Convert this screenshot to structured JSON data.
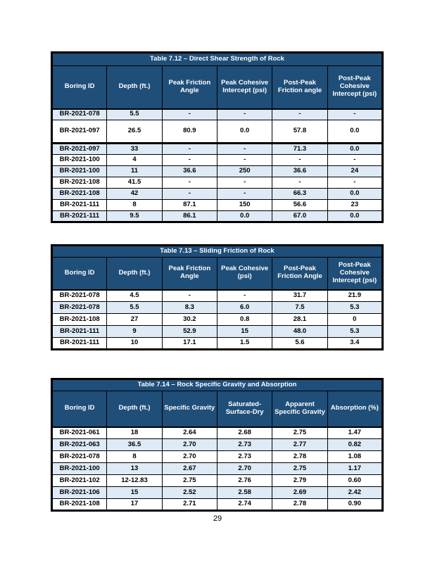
{
  "page": {
    "number": "29"
  },
  "colors": {
    "header_bg": "#1F4E79",
    "shaded_row_bg": "#DEEAF6",
    "border": "#000000",
    "header_text": "#FFFFFF"
  },
  "tables": [
    {
      "title": "Table 7.12 – Direct Shear Strength of Rock",
      "columns": [
        "Boring ID",
        "Depth (ft.)",
        "Peak Friction Angle",
        "Peak Cohesive Intercept (psi)",
        "Post-Peak Friction angle",
        "Post-Peak Cohesive Intercept (psi)"
      ],
      "rows": [
        [
          "BR-2021-078",
          "5.5",
          "-",
          "-",
          "-",
          "-"
        ],
        [
          "BR-2021-097",
          "26.5",
          "80.9",
          "0.0",
          "57.8",
          "0.0"
        ],
        [
          "BR-2021-097",
          "33",
          "-",
          "-",
          "71.3",
          "0.0"
        ],
        [
          "BR-2021-100",
          "4",
          "-",
          "-",
          "-",
          "-"
        ],
        [
          "BR-2021-100",
          "11",
          "36.6",
          "250",
          "36.6",
          "24"
        ],
        [
          "BR-2021-108",
          "41.5",
          "-",
          "-",
          "-",
          "-"
        ],
        [
          "BR-2021-108",
          "42",
          "-",
          "-",
          "66.3",
          "0.0"
        ],
        [
          "BR-2021-111",
          "8",
          "87.1",
          "150",
          "56.6",
          "23"
        ],
        [
          "BR-2021-111",
          "9.5",
          "86.1",
          "0.0",
          "67.0",
          "0.0"
        ]
      ]
    },
    {
      "title": "Table 7.13 – Sliding Friction of Rock",
      "columns": [
        "Boring ID",
        "Depth (ft.)",
        "Peak Friction Angle",
        "Peak Cohesive (psi)",
        "Post-Peak Friction Angle",
        "Post-Peak Cohesive Intercept (psi)"
      ],
      "rows": [
        [
          "BR-2021-078",
          "4.5",
          "-",
          "-",
          "31.7",
          "21.9"
        ],
        [
          "BR-2021-078",
          "5.5",
          "8.3",
          "6.0",
          "7.5",
          "5.3"
        ],
        [
          "BR-2021-108",
          "27",
          "30.2",
          "0.8",
          "28.1",
          "0"
        ],
        [
          "BR-2021-111",
          "9",
          "52.9",
          "15",
          "48.0",
          "5.3"
        ],
        [
          "BR-2021-111",
          "10",
          "17.1",
          "1.5",
          "5.6",
          "3.4"
        ]
      ]
    },
    {
      "title": "Table 7.14 – Rock Specific Gravity and Absorption",
      "columns": [
        "Boring ID",
        "Depth (ft.)",
        "Specific Gravity",
        "Saturated-Surface-Dry",
        "Apparent Specific Gravity",
        "Absorption (%)"
      ],
      "rows": [
        [
          "BR-2021-061",
          "18",
          "2.64",
          "2.68",
          "2.75",
          "1.47"
        ],
        [
          "BR-2021-063",
          "36.5",
          "2.70",
          "2.73",
          "2.77",
          "0.82"
        ],
        [
          "BR-2021-078",
          "8",
          "2.70",
          "2.73",
          "2.78",
          "1.08"
        ],
        [
          "BR-2021-100",
          "13",
          "2.67",
          "2.70",
          "2.75",
          "1.17"
        ],
        [
          "BR-2021-102",
          "12-12.83",
          "2.75",
          "2.76",
          "2.79",
          "0.60"
        ],
        [
          "BR-2021-106",
          "15",
          "2.52",
          "2.58",
          "2.69",
          "2.42"
        ],
        [
          "BR-2021-108",
          "17",
          "2.71",
          "2.74",
          "2.78",
          "0.90"
        ]
      ]
    }
  ]
}
